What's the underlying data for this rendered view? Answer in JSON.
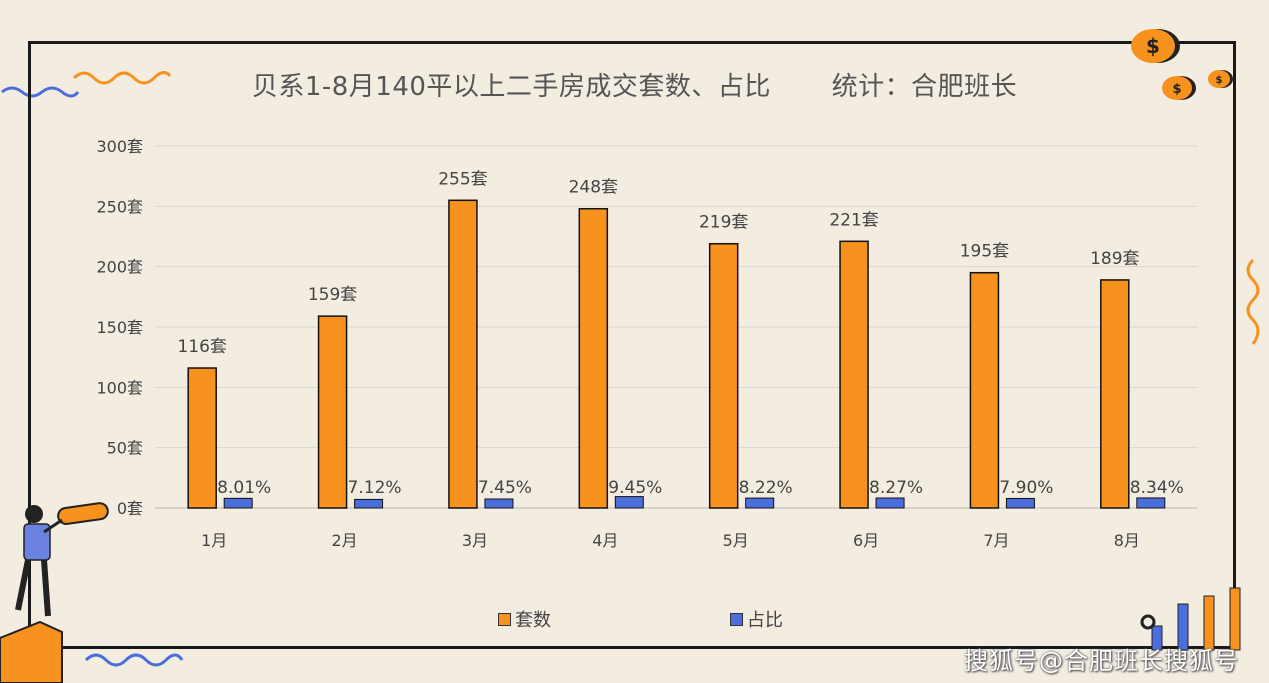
{
  "title": "贝系1-8月140平以上二手房成交套数、占比",
  "subtitle": "统计：合肥班长",
  "watermark_text": "搜狐号@合肥班长搜狐号",
  "colors": {
    "bar": "#f7921e",
    "ratio": "#4a6fdc",
    "grid": "#d9d6d0",
    "text": "#444444"
  },
  "icons": [
    "coin-icon",
    "person-with-telescope-icon",
    "bar-chart-decor-icon",
    "wave-icon"
  ],
  "chart_data": {
    "type": "bar",
    "categories": [
      "1月",
      "2月",
      "3月",
      "4月",
      "5月",
      "6月",
      "7月",
      "8月"
    ],
    "series": [
      {
        "name": "套数",
        "values": [
          116,
          159,
          255,
          248,
          219,
          221,
          195,
          189
        ],
        "labels": [
          "116套",
          "159套",
          "255套",
          "248套",
          "219套",
          "221套",
          "195套",
          "189套"
        ]
      },
      {
        "name": "占比",
        "values": [
          8.01,
          7.12,
          7.45,
          9.45,
          8.22,
          8.27,
          7.9,
          8.34
        ],
        "labels": [
          "8.01%",
          "7.12%",
          "7.45%",
          "9.45%",
          "8.22%",
          "8.27%",
          "7.90%",
          "8.34%"
        ]
      }
    ],
    "yticks": [
      "0套",
      "50套",
      "100套",
      "150套",
      "200套",
      "250套",
      "300套"
    ],
    "ylim": [
      0,
      300
    ],
    "grid": true,
    "legend": "bottom"
  }
}
